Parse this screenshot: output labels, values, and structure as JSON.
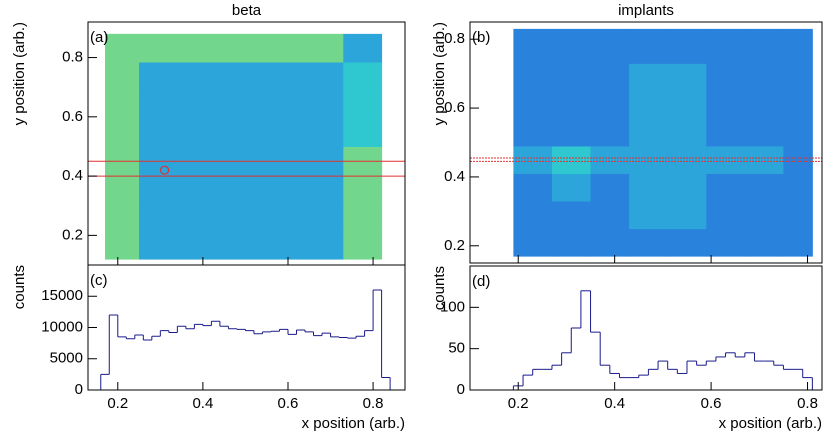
{
  "chart_data": [
    {
      "type": "heatmap",
      "title": "beta",
      "panel_label": "(a)",
      "ylabel": "y position (arb.)",
      "xlim": [
        0.13,
        0.875
      ],
      "ylim": [
        0.1,
        0.92
      ],
      "yticks": [
        0.2,
        0.4,
        0.6,
        0.8
      ],
      "x_edges": [
        0.17,
        0.25,
        0.33,
        0.41,
        0.49,
        0.57,
        0.65,
        0.73,
        0.82
      ],
      "y_edges": [
        0.12,
        0.215,
        0.31,
        0.405,
        0.5,
        0.595,
        0.69,
        0.785,
        0.88
      ],
      "values": [
        [
          6,
          4,
          4,
          4,
          4,
          4,
          4,
          6
        ],
        [
          6,
          4,
          4,
          4,
          4,
          4,
          4,
          6
        ],
        [
          6,
          4,
          4,
          4,
          4,
          4,
          4,
          6
        ],
        [
          6,
          4,
          4,
          4,
          4,
          4,
          4,
          6
        ],
        [
          6,
          4,
          4,
          4,
          4,
          4,
          4,
          5
        ],
        [
          6,
          4,
          4,
          4,
          4,
          4,
          4,
          5
        ],
        [
          6,
          4,
          4,
          4,
          4,
          4,
          4,
          5
        ],
        [
          6,
          6,
          6,
          6,
          6,
          6,
          6,
          4
        ]
      ],
      "zlim": [
        0,
        10
      ],
      "colormap": [
        "#1a2a8a",
        "#2350c8",
        "#2a8ee0",
        "#30c8d0",
        "#a0e060",
        "#f8e030",
        "#e03020"
      ],
      "hlines": [
        {
          "value": 0.45,
          "color": "#e03030"
        },
        {
          "value": 0.4,
          "color": "#e03030"
        }
      ],
      "marker": {
        "x": 0.31,
        "y": 0.42,
        "color": "#e03030"
      }
    },
    {
      "type": "heatmap",
      "title": "implants",
      "panel_label": "(b)",
      "ylabel": "y position (arb.)",
      "xlim": [
        0.1,
        0.83
      ],
      "ylim": [
        0.15,
        0.85
      ],
      "yticks": [
        0.2,
        0.4,
        0.6,
        0.8
      ],
      "x_edges": [
        0.19,
        0.27,
        0.35,
        0.43,
        0.51,
        0.59,
        0.67,
        0.75,
        0.81
      ],
      "y_edges": [
        0.17,
        0.25,
        0.33,
        0.41,
        0.49,
        0.57,
        0.65,
        0.73,
        0.83
      ],
      "values": [
        [
          3,
          3,
          3,
          3,
          3,
          3,
          3,
          3
        ],
        [
          3,
          3,
          3,
          4,
          4,
          3,
          3,
          3
        ],
        [
          3,
          4,
          3,
          4,
          4,
          3,
          3,
          3
        ],
        [
          4,
          5,
          4,
          4,
          4,
          4,
          4,
          3
        ],
        [
          3,
          3,
          3,
          4,
          4,
          3,
          3,
          3
        ],
        [
          3,
          3,
          3,
          4,
          4,
          3,
          3,
          3
        ],
        [
          3,
          3,
          3,
          4,
          4,
          3,
          3,
          3
        ],
        [
          3,
          3,
          3,
          3,
          3,
          3,
          3,
          3
        ]
      ],
      "zlim": [
        0,
        10
      ],
      "colormap": [
        "#1a2a8a",
        "#2350c8",
        "#2a8ee0",
        "#30c8d0",
        "#a0e060",
        "#f8e030",
        "#e03020"
      ],
      "hlines": [
        {
          "value": 0.445,
          "color": "#e03030"
        },
        {
          "value": 0.455,
          "color": "#e03030"
        }
      ]
    },
    {
      "type": "histogram",
      "panel_label": "(c)",
      "ylabel": "counts",
      "xlabel": "x position (arb.)",
      "xlim": [
        0.13,
        0.875
      ],
      "ylim": [
        0,
        20000
      ],
      "yticks": [
        0,
        5000,
        10000,
        15000
      ],
      "xticks": [
        0.2,
        0.4,
        0.6,
        0.8
      ],
      "bins": [
        0.16,
        0.18,
        0.2,
        0.22,
        0.24,
        0.26,
        0.28,
        0.3,
        0.32,
        0.34,
        0.36,
        0.38,
        0.4,
        0.42,
        0.44,
        0.46,
        0.48,
        0.5,
        0.52,
        0.54,
        0.56,
        0.58,
        0.6,
        0.62,
        0.64,
        0.66,
        0.68,
        0.7,
        0.72,
        0.74,
        0.76,
        0.78,
        0.8,
        0.82,
        0.84
      ],
      "values": [
        2500,
        12000,
        8500,
        8200,
        8800,
        8000,
        8600,
        9500,
        9200,
        10200,
        9800,
        10500,
        10300,
        11000,
        10200,
        9800,
        9700,
        9500,
        9000,
        9300,
        9400,
        9700,
        8900,
        9600,
        9300,
        8700,
        9100,
        8500,
        8400,
        8300,
        8600,
        9500,
        16000,
        2000
      ],
      "color": "#1a1a8c"
    },
    {
      "type": "histogram",
      "panel_label": "(d)",
      "ylabel": "counts",
      "xlabel": "x position (arb.)",
      "xlim": [
        0.1,
        0.83
      ],
      "ylim": [
        0,
        150
      ],
      "yticks": [
        0,
        50,
        100
      ],
      "xticks": [
        0.2,
        0.4,
        0.6,
        0.8
      ],
      "bins": [
        0.19,
        0.21,
        0.23,
        0.25,
        0.27,
        0.29,
        0.31,
        0.33,
        0.35,
        0.37,
        0.39,
        0.41,
        0.43,
        0.45,
        0.47,
        0.49,
        0.51,
        0.53,
        0.55,
        0.57,
        0.59,
        0.61,
        0.63,
        0.65,
        0.67,
        0.69,
        0.71,
        0.73,
        0.75,
        0.77,
        0.79,
        0.81
      ],
      "values": [
        5,
        18,
        25,
        25,
        30,
        45,
        75,
        120,
        70,
        30,
        20,
        15,
        15,
        18,
        25,
        35,
        25,
        20,
        35,
        30,
        35,
        40,
        45,
        40,
        45,
        35,
        35,
        30,
        25,
        25,
        15
      ],
      "color": "#1a1a8c"
    }
  ]
}
